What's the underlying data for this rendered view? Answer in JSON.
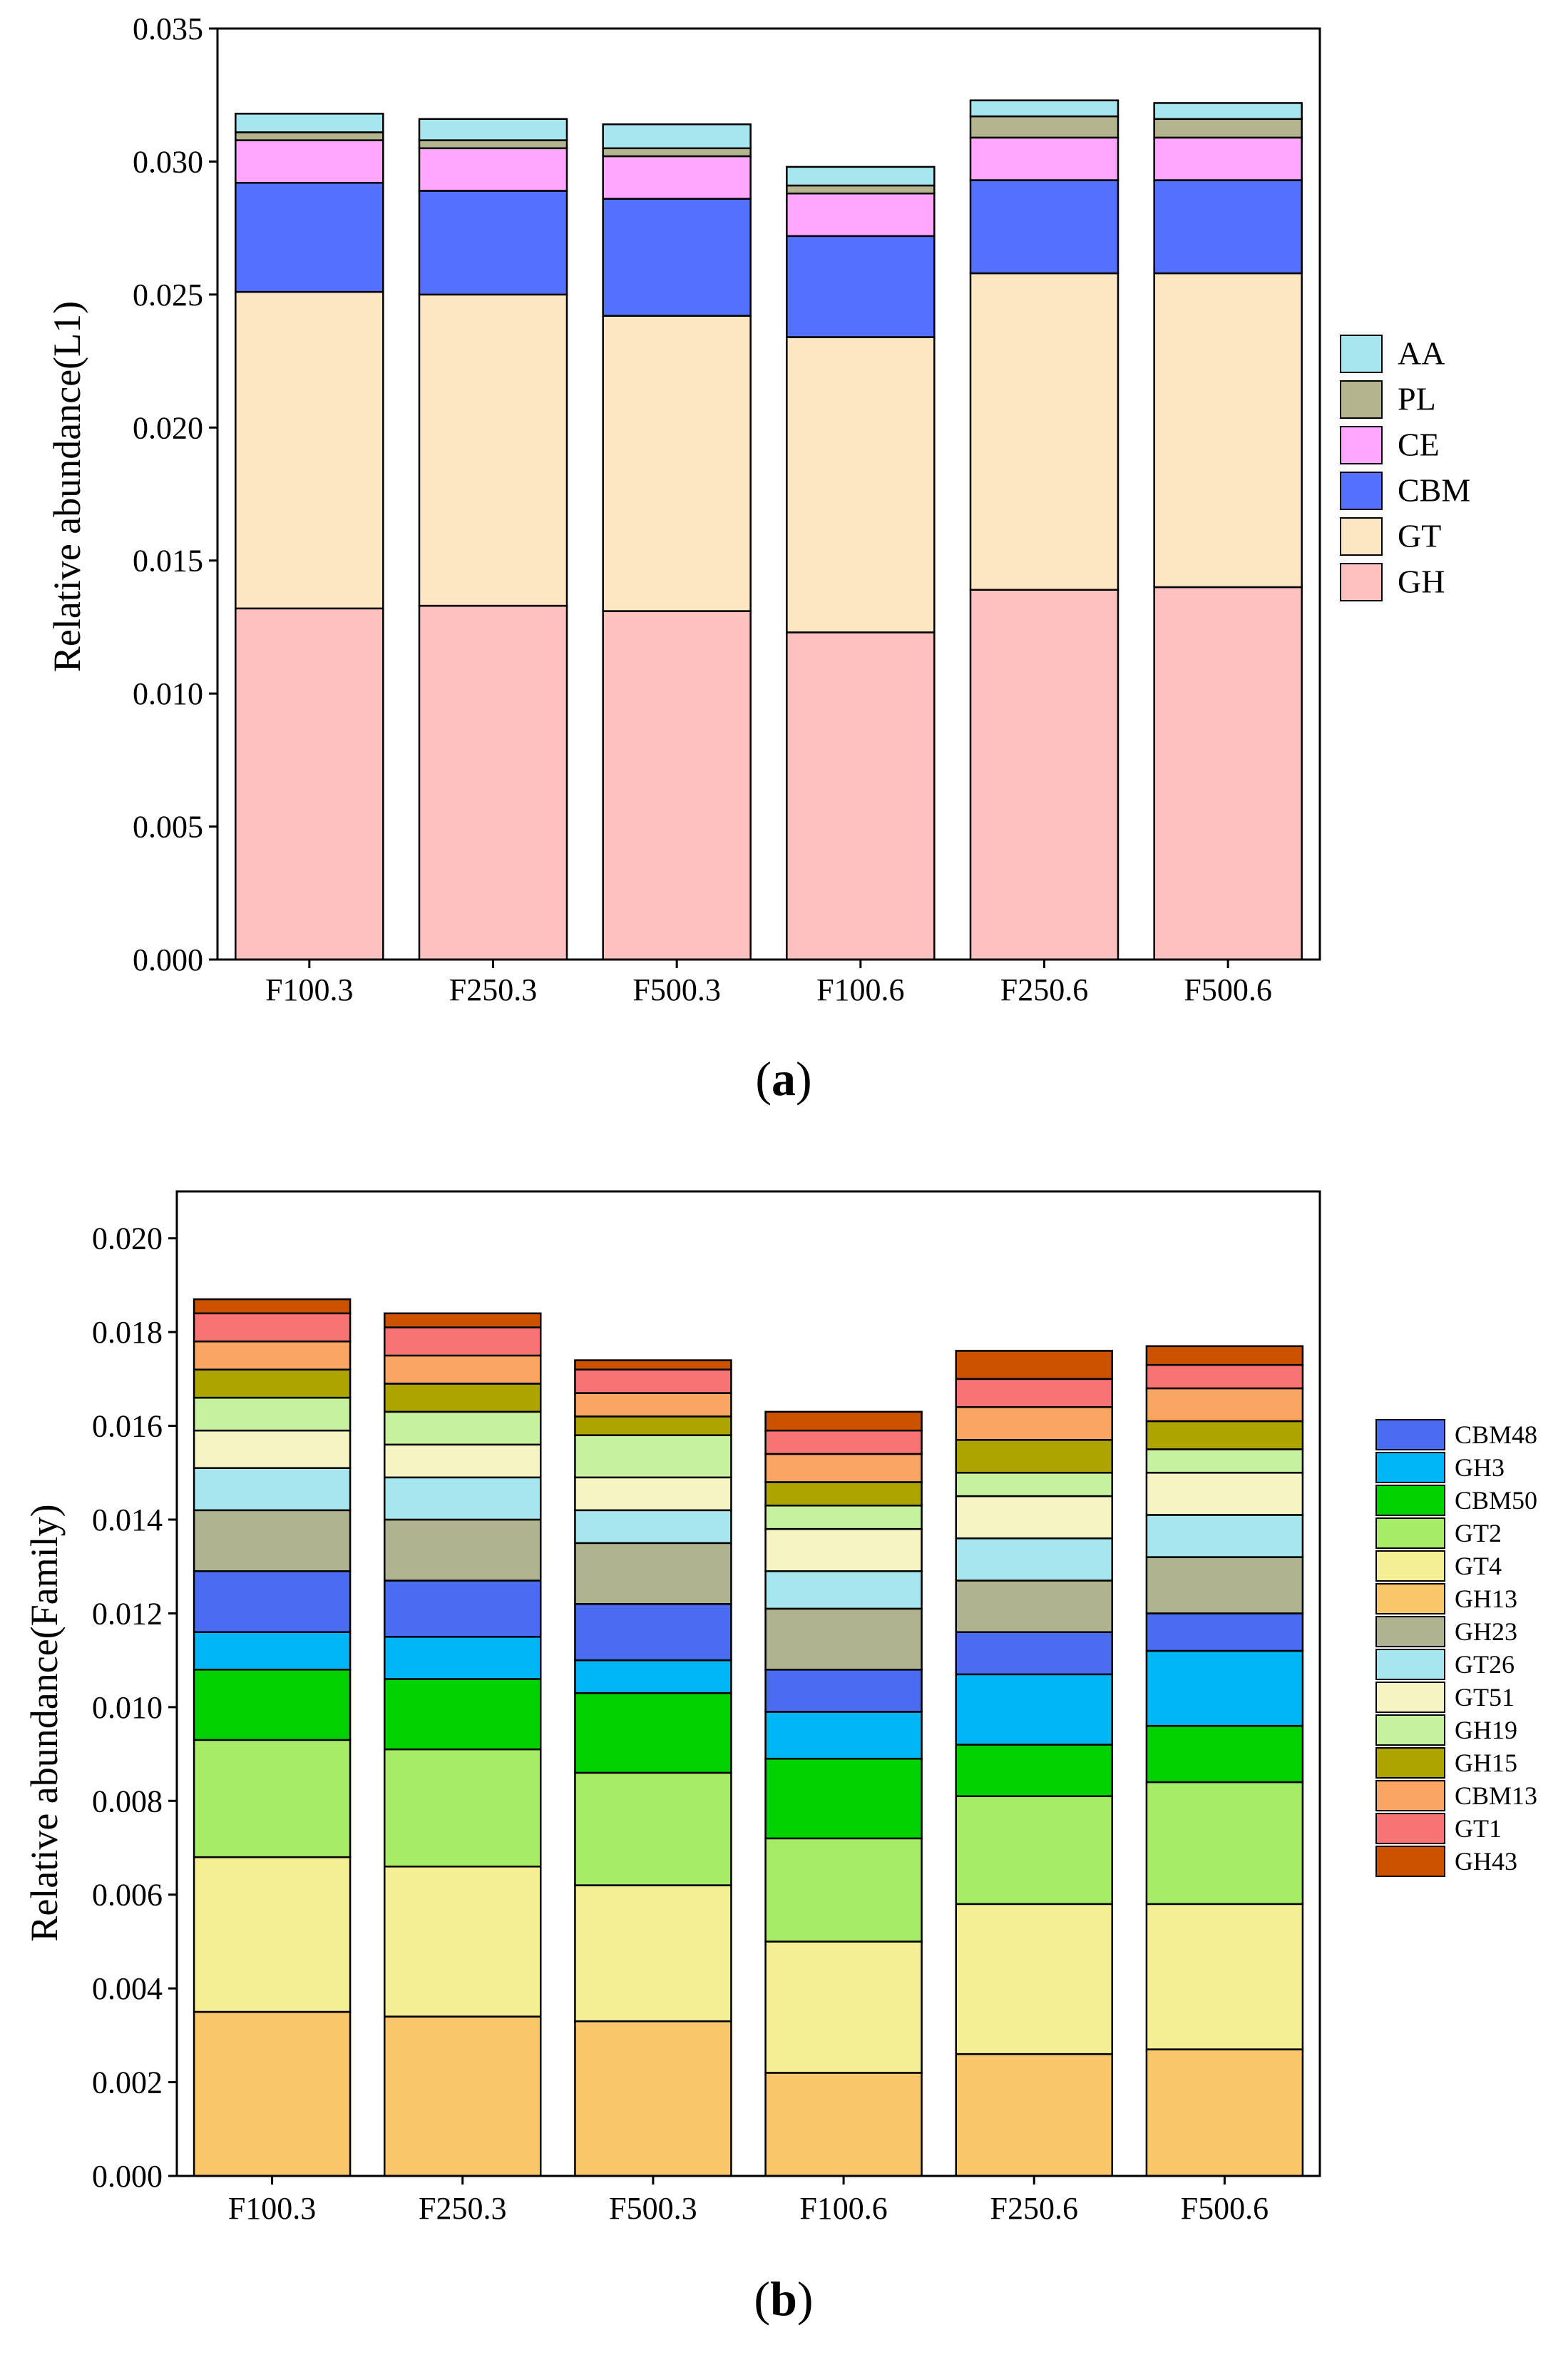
{
  "figure": {
    "panel_a_label": "a",
    "panel_b_label": "b"
  },
  "chart_data": [
    {
      "type": "bar",
      "stacked": true,
      "title": "",
      "xlabel": "",
      "ylabel": "Relative abundance(L1)",
      "ylim": [
        0,
        0.035
      ],
      "yticks": [
        "0.000",
        "0.005",
        "0.010",
        "0.015",
        "0.020",
        "0.025",
        "0.030",
        "0.035"
      ],
      "categories": [
        "F100.3",
        "F250.3",
        "F500.3",
        "F100.6",
        "F250.6",
        "F500.6"
      ],
      "legend_position": "right",
      "series": [
        {
          "name": "GH",
          "color": "#FFC0C0",
          "values": [
            0.0132,
            0.0133,
            0.0131,
            0.0123,
            0.0139,
            0.014
          ]
        },
        {
          "name": "GT",
          "color": "#FDE6C2",
          "values": [
            0.0119,
            0.0117,
            0.0111,
            0.0111,
            0.0119,
            0.0118
          ]
        },
        {
          "name": "CBM",
          "color": "#5470FF",
          "values": [
            0.0041,
            0.0039,
            0.0044,
            0.0038,
            0.0035,
            0.0035
          ]
        },
        {
          "name": "CE",
          "color": "#FFA6FF",
          "values": [
            0.0016,
            0.0016,
            0.0016,
            0.0016,
            0.0016,
            0.0016
          ]
        },
        {
          "name": "PL",
          "color": "#B4B48E",
          "values": [
            0.0003,
            0.0003,
            0.0003,
            0.0003,
            0.0008,
            0.0007
          ]
        },
        {
          "name": "AA",
          "color": "#A6E6EE",
          "values": [
            0.0007,
            0.0008,
            0.0009,
            0.0007,
            0.0006,
            0.0006
          ]
        }
      ]
    },
    {
      "type": "bar",
      "stacked": true,
      "title": "",
      "xlabel": "",
      "ylabel": "Relative abundance(Family)",
      "ylim": [
        0,
        0.021
      ],
      "yticks": [
        "0.000",
        "0.002",
        "0.004",
        "0.006",
        "0.008",
        "0.010",
        "0.012",
        "0.014",
        "0.016",
        "0.018",
        "0.020"
      ],
      "categories": [
        "F100.3",
        "F250.3",
        "F500.3",
        "F100.6",
        "F250.6",
        "F500.6"
      ],
      "legend_position": "right",
      "series": [
        {
          "name": "GH13",
          "color": "#F9C66A",
          "values": [
            0.0035,
            0.0034,
            0.0033,
            0.0022,
            0.0026,
            0.0027
          ]
        },
        {
          "name": "GT4",
          "color": "#F4EE94",
          "values": [
            0.0033,
            0.0032,
            0.0029,
            0.0028,
            0.0032,
            0.0031
          ]
        },
        {
          "name": "GT2",
          "color": "#A6EC66",
          "values": [
            0.0025,
            0.0025,
            0.0024,
            0.0022,
            0.0023,
            0.0026
          ]
        },
        {
          "name": "CBM50",
          "color": "#00D200",
          "values": [
            0.0015,
            0.0015,
            0.0017,
            0.0017,
            0.0011,
            0.0012
          ]
        },
        {
          "name": "GH3",
          "color": "#00B6F4",
          "values": [
            0.0008,
            0.0009,
            0.0007,
            0.001,
            0.0015,
            0.0016
          ]
        },
        {
          "name": "CBM48",
          "color": "#4A6CF0",
          "values": [
            0.0013,
            0.0012,
            0.0012,
            0.0009,
            0.0009,
            0.0008
          ]
        },
        {
          "name": "GH23",
          "color": "#B0B48E",
          "values": [
            0.0013,
            0.0013,
            0.0013,
            0.0013,
            0.0011,
            0.0012
          ]
        },
        {
          "name": "GT26",
          "color": "#A6E6EE",
          "values": [
            0.0009,
            0.0009,
            0.0007,
            0.0008,
            0.0009,
            0.0009
          ]
        },
        {
          "name": "GT51",
          "color": "#F6F4C2",
          "values": [
            0.0008,
            0.0007,
            0.0007,
            0.0009,
            0.0009,
            0.0009
          ]
        },
        {
          "name": "GH19",
          "color": "#C6F2A0",
          "values": [
            0.0007,
            0.0007,
            0.0009,
            0.0005,
            0.0005,
            0.0005
          ]
        },
        {
          "name": "GH15",
          "color": "#AEA400",
          "values": [
            0.0006,
            0.0006,
            0.0004,
            0.0005,
            0.0007,
            0.0006
          ]
        },
        {
          "name": "CBM13",
          "color": "#F9A662",
          "values": [
            0.0006,
            0.0006,
            0.0005,
            0.0006,
            0.0007,
            0.0007
          ]
        },
        {
          "name": "GT1",
          "color": "#F87474",
          "values": [
            0.0006,
            0.0006,
            0.0005,
            0.0005,
            0.0006,
            0.0005
          ]
        },
        {
          "name": "GH43",
          "color": "#CC5200",
          "values": [
            0.0003,
            0.0003,
            0.0002,
            0.0004,
            0.0006,
            0.0004
          ]
        }
      ],
      "legend_order": [
        "CBM48",
        "GH3",
        "CBM50",
        "GT2",
        "GT4",
        "GH13",
        "GH23",
        "GT26",
        "GT51",
        "GH19",
        "GH15",
        "CBM13",
        "GT1",
        "GH43"
      ]
    }
  ]
}
